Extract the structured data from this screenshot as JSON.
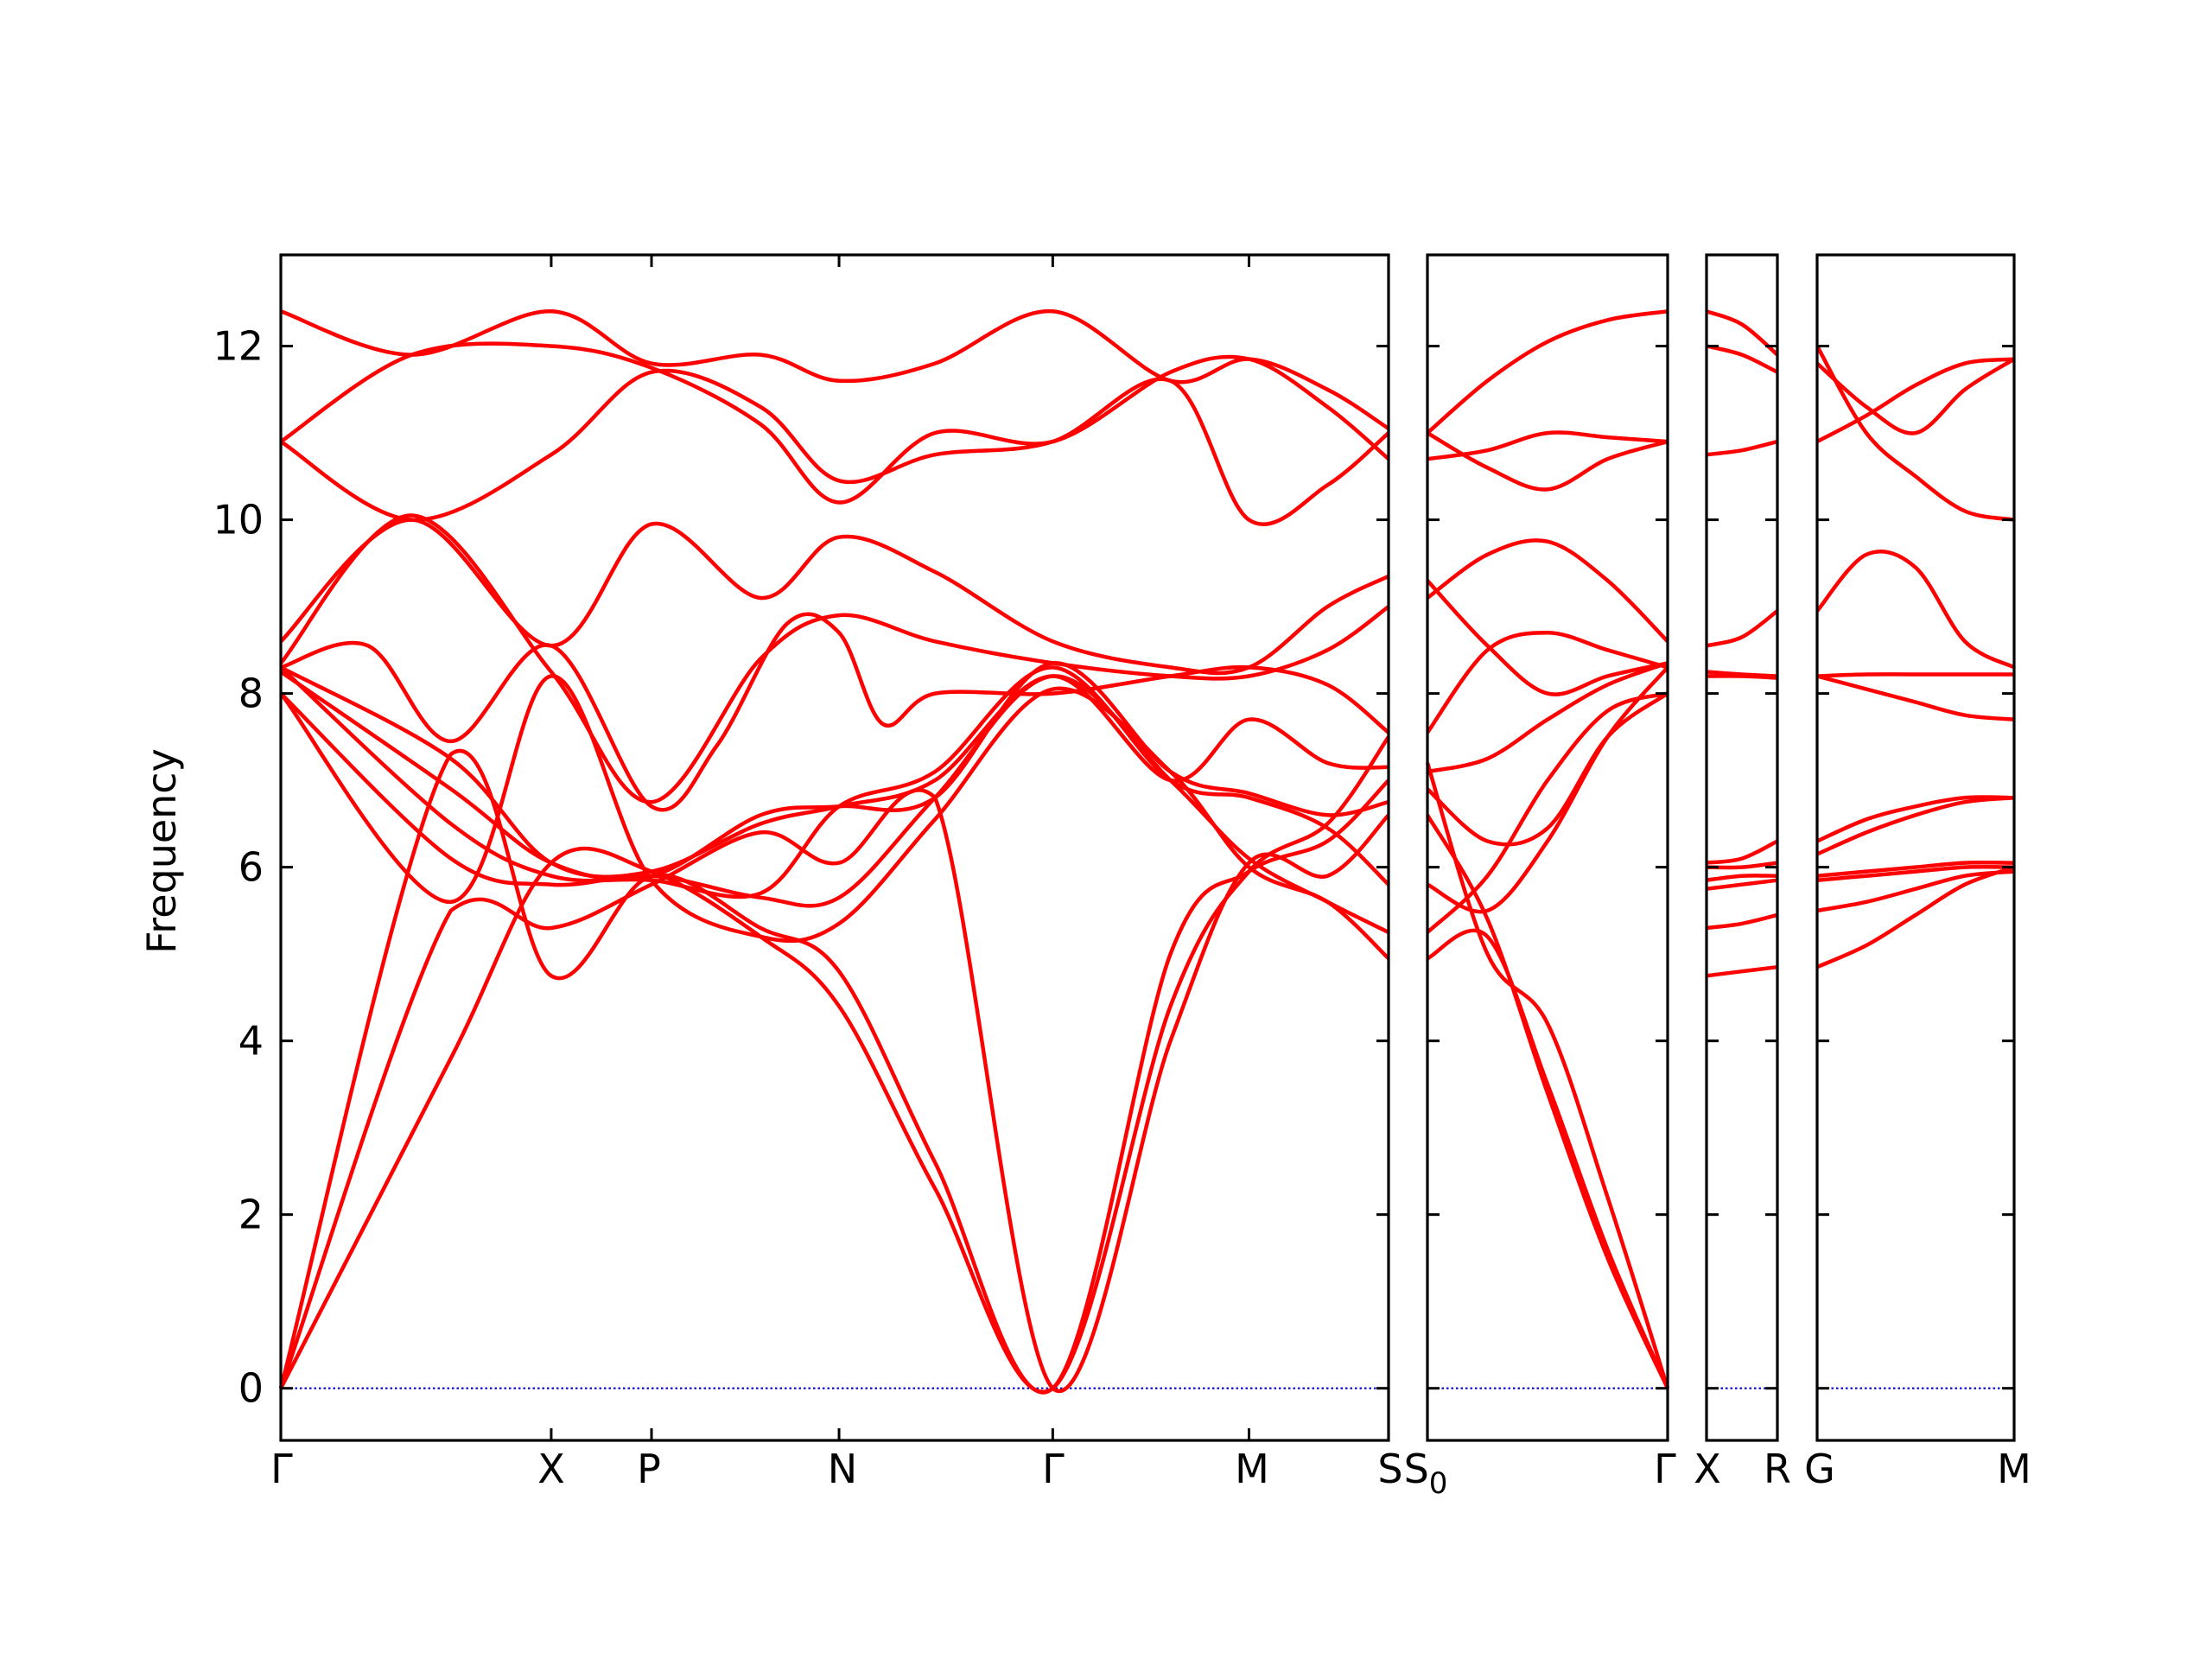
{
  "chart_data": {
    "type": "line",
    "ylabel": "Frequency",
    "ylim": [
      -0.6,
      13.05
    ],
    "y_ticks": [
      0,
      2,
      4,
      6,
      8,
      10,
      12
    ],
    "line_color": "#ff0000",
    "zero_line_color": "#0000cc",
    "x_tick_labels": [
      "Γ",
      "X",
      "P",
      "N",
      "Γ",
      "M",
      "S",
      "S",
      "0",
      "Γ",
      "X",
      "R",
      "G",
      "M"
    ],
    "panels": [
      {
        "x_range": [
          0,
          12.7
        ],
        "path_points": [
          {
            "label": "Γ",
            "x": 0
          },
          {
            "label": "X",
            "x": 3.1
          },
          {
            "label": "P",
            "x": 4.25
          },
          {
            "label": "N",
            "x": 6.4
          },
          {
            "label": "Γ",
            "x": 8.85
          },
          {
            "label": "M",
            "x": 11.1
          },
          {
            "label": "S",
            "x": 12.7
          }
        ],
        "series": [
          {
            "x": [
              0,
              1.5,
              3.1,
              4.25,
              5.5,
              6.4,
              7.5,
              8.85,
              10.2,
              11.1,
              12.0,
              12.7
            ],
            "y": [
              12.4,
              11.9,
              12.4,
              11.8,
              11.9,
              11.6,
              11.8,
              12.4,
              11.6,
              11.85,
              11.5,
              11.05
            ]
          },
          {
            "x": [
              0,
              1.5,
              3.1,
              4.25,
              5.5,
              6.4,
              7.5,
              8.85,
              10.2,
              11.1,
              12.0,
              12.7
            ],
            "y": [
              10.9,
              11.9,
              12.0,
              11.75,
              11.1,
              10.2,
              11.0,
              10.9,
              11.7,
              11.85,
              11.3,
              10.7
            ]
          },
          {
            "x": [
              0,
              1.5,
              3.1,
              4.25,
              5.5,
              6.4,
              7.5,
              8.85,
              10.2,
              11.1,
              12.0,
              12.7
            ],
            "y": [
              10.9,
              10.0,
              10.75,
              11.7,
              11.3,
              10.45,
              10.75,
              10.9,
              11.6,
              10.0,
              10.4,
              11.0
            ]
          },
          {
            "x": [
              0,
              1.5,
              3.1,
              4.25,
              5.5,
              6.4,
              7.5,
              8.85,
              10.2,
              11.1,
              12.0,
              12.7
            ],
            "y": [
              8.6,
              10.0,
              8.55,
              9.95,
              9.1,
              9.8,
              9.4,
              8.6,
              8.3,
              8.3,
              9.0,
              9.35
            ]
          },
          {
            "x": [
              0,
              1.5,
              3.1,
              4.25,
              5.5,
              6.4,
              7.5,
              8.85,
              10.2,
              11.1,
              12.0,
              12.7
            ],
            "y": [
              8.35,
              10.05,
              8.25,
              6.75,
              8.4,
              8.9,
              8.6,
              8.35,
              8.2,
              8.2,
              8.5,
              9.0
            ]
          },
          {
            "x": [
              0,
              1.0,
              1.95,
              3.1,
              4.25,
              5.0,
              5.8,
              6.4,
              6.9,
              7.5,
              8.85,
              10.2,
              11.1,
              12.0,
              12.7
            ],
            "y": [
              8.3,
              8.55,
              7.45,
              8.55,
              6.7,
              7.4,
              8.8,
              8.7,
              7.65,
              8.0,
              8.0,
              8.2,
              8.3,
              8.1,
              7.55
            ]
          },
          {
            "x": [
              0,
              1.95,
              3.1,
              4.25,
              5.5,
              6.4,
              7.5,
              8.85,
              10.2,
              11.1,
              12.0,
              12.7
            ],
            "y": [
              8.3,
              7.25,
              6.05,
              5.95,
              6.5,
              6.7,
              7.0,
              8.2,
              7.0,
              7.7,
              7.2,
              7.15
            ]
          },
          {
            "x": [
              0,
              1.95,
              3.1,
              4.25,
              5.5,
              6.4,
              7.5,
              8.85,
              10.2,
              11.1,
              12.0,
              12.7
            ],
            "y": [
              8.25,
              6.9,
              6.05,
              5.9,
              6.6,
              6.7,
              6.8,
              8.35,
              7.1,
              6.85,
              6.6,
              6.75
            ]
          },
          {
            "x": [
              0,
              1.95,
              3.1,
              4.25,
              5.5,
              6.4,
              7.5,
              8.85,
              10.2,
              11.1,
              12.0,
              12.7
            ],
            "y": [
              8.3,
              6.5,
              5.9,
              5.85,
              5.7,
              6.7,
              7.1,
              8.3,
              7.0,
              6.8,
              6.45,
              5.8
            ]
          },
          {
            "x": [
              0,
              1.95,
              3.1,
              4.25,
              5.5,
              6.4,
              7.5,
              8.85,
              10.2,
              11.1,
              12.0,
              12.7
            ],
            "y": [
              8.0,
              6.1,
              5.8,
              5.9,
              5.65,
              5.65,
              6.8,
              8.2,
              7.0,
              6.1,
              5.6,
              5.25
            ]
          },
          {
            "x": [
              0,
              1.95,
              3.1,
              4.25,
              5.5,
              6.4,
              7.5,
              8.85,
              10.2,
              11.1,
              12.0,
              12.7
            ],
            "y": [
              8.0,
              5.6,
              8.2,
              5.85,
              5.2,
              5.35,
              6.55,
              8.05,
              7.1,
              6.0,
              5.6,
              4.95
            ]
          },
          {
            "x": [
              0,
              1.95,
              3.1,
              4.25,
              5.5,
              6.4,
              7.5,
              8.85,
              10.2,
              11.1,
              12.0,
              12.7
            ],
            "y": [
              0,
              5.5,
              5.3,
              5.8,
              6.4,
              6.05,
              6.8,
              0,
              4.0,
              6.05,
              5.9,
              6.6
            ]
          },
          {
            "x": [
              0,
              1.95,
              3.1,
              4.25,
              5.5,
              6.4,
              7.5,
              8.85,
              10.2,
              11.1,
              12.0,
              12.7
            ],
            "y": [
              0,
              7.3,
              4.75,
              5.9,
              5.3,
              4.8,
              2.6,
              0,
              5.0,
              5.95,
              6.3,
              7.0
            ]
          },
          {
            "x": [
              0,
              1.95,
              3.1,
              4.25,
              5.5,
              6.4,
              7.5,
              8.85,
              10.2,
              11.1,
              12.0,
              12.7
            ],
            "y": [
              0,
              3.8,
              6.05,
              5.95,
              5.2,
              4.4,
              2.3,
              0,
              4.4,
              5.95,
              6.5,
              7.5
            ]
          }
        ]
      },
      {
        "x_range": [
          0,
          1
        ],
        "path_points": [
          {
            "label": "S0",
            "x": 0
          },
          {
            "label": "Γ",
            "x": 1
          }
        ],
        "series": [
          {
            "x": [
              0,
              0.25,
              0.5,
              0.75,
              1
            ],
            "y": [
              11.0,
              11.6,
              12.05,
              12.3,
              12.4
            ]
          },
          {
            "x": [
              0,
              0.25,
              0.5,
              0.75,
              1
            ],
            "y": [
              11.0,
              10.6,
              10.35,
              10.7,
              10.9
            ]
          },
          {
            "x": [
              0,
              0.25,
              0.5,
              0.75,
              1
            ],
            "y": [
              10.7,
              10.8,
              11.0,
              10.95,
              10.9
            ]
          },
          {
            "x": [
              0,
              0.25,
              0.5,
              0.75,
              1
            ],
            "y": [
              9.1,
              9.6,
              9.75,
              9.3,
              8.6
            ]
          },
          {
            "x": [
              0,
              0.25,
              0.5,
              0.75,
              1
            ],
            "y": [
              9.3,
              8.55,
              8.0,
              8.2,
              8.35
            ]
          },
          {
            "x": [
              0,
              0.25,
              0.5,
              0.75,
              1
            ],
            "y": [
              7.55,
              8.5,
              8.7,
              8.5,
              8.3
            ]
          },
          {
            "x": [
              0,
              0.25,
              0.5,
              0.75,
              1
            ],
            "y": [
              7.1,
              7.25,
              7.7,
              8.1,
              8.35
            ]
          },
          {
            "x": [
              0,
              0.25,
              0.5,
              0.75,
              1
            ],
            "y": [
              6.9,
              6.3,
              6.45,
              7.5,
              8.0
            ]
          },
          {
            "x": [
              0,
              0.25,
              0.5,
              0.75,
              1
            ],
            "y": [
              5.8,
              5.5,
              6.3,
              7.5,
              8.3
            ]
          },
          {
            "x": [
              0,
              0.25,
              0.5,
              0.75,
              1
            ],
            "y": [
              5.25,
              5.9,
              7.0,
              7.8,
              8.0
            ]
          },
          {
            "x": [
              0,
              0.25,
              0.5,
              0.75,
              1
            ],
            "y": [
              4.95,
              5.2,
              3.5,
              1.6,
              0
            ]
          },
          {
            "x": [
              0,
              0.25,
              0.5,
              0.75,
              1
            ],
            "y": [
              7.2,
              5.0,
              4.2,
              2.2,
              0
            ]
          },
          {
            "x": [
              0,
              0.25,
              0.5,
              0.75,
              1
            ],
            "y": [
              6.6,
              5.4,
              3.4,
              1.5,
              0
            ]
          }
        ]
      },
      {
        "x_range": [
          0,
          1
        ],
        "path_points": [
          {
            "label": "X",
            "x": 0
          },
          {
            "label": "R",
            "x": 1
          }
        ],
        "series": [
          {
            "x": [
              0,
              0.5,
              1
            ],
            "y": [
              12.4,
              12.25,
              11.9
            ]
          },
          {
            "x": [
              0,
              0.5,
              1
            ],
            "y": [
              12.0,
              11.9,
              11.7
            ]
          },
          {
            "x": [
              0,
              0.5,
              1
            ],
            "y": [
              10.75,
              10.8,
              10.9
            ]
          },
          {
            "x": [
              0,
              0.5,
              1
            ],
            "y": [
              8.55,
              8.65,
              8.95
            ]
          },
          {
            "x": [
              0,
              0.5,
              1
            ],
            "y": [
              8.25,
              8.22,
              8.2
            ]
          },
          {
            "x": [
              0,
              0.5,
              1
            ],
            "y": [
              8.2,
              8.2,
              8.18
            ]
          },
          {
            "x": [
              0,
              0.5,
              1
            ],
            "y": [
              6.05,
              6.1,
              6.3
            ]
          },
          {
            "x": [
              0,
              0.5,
              1
            ],
            "y": [
              6.0,
              6.0,
              6.05
            ]
          },
          {
            "x": [
              0,
              0.5,
              1
            ],
            "y": [
              5.85,
              5.9,
              5.9
            ]
          },
          {
            "x": [
              0,
              0.5,
              1
            ],
            "y": [
              5.75,
              5.8,
              5.85
            ]
          },
          {
            "x": [
              0,
              0.5,
              1
            ],
            "y": [
              5.3,
              5.35,
              5.45
            ]
          },
          {
            "x": [
              0,
              0.5,
              1
            ],
            "y": [
              4.75,
              4.8,
              4.85
            ]
          }
        ]
      },
      {
        "x_range": [
          0,
          1
        ],
        "path_points": [
          {
            "label": "G",
            "x": 0
          },
          {
            "label": "M",
            "x": 1
          }
        ],
        "series": [
          {
            "x": [
              0,
              0.25,
              0.5,
              0.75,
              1
            ],
            "y": [
              12.0,
              11.0,
              10.5,
              10.1,
              10.0
            ]
          },
          {
            "x": [
              0,
              0.25,
              0.5,
              0.75,
              1
            ],
            "y": [
              11.8,
              11.3,
              11.0,
              11.5,
              11.85
            ]
          },
          {
            "x": [
              0,
              0.25,
              0.5,
              0.75,
              1
            ],
            "y": [
              10.9,
              11.2,
              11.55,
              11.8,
              11.85
            ]
          },
          {
            "x": [
              0,
              0.25,
              0.5,
              0.75,
              1
            ],
            "y": [
              8.95,
              9.6,
              9.45,
              8.6,
              8.3
            ]
          },
          {
            "x": [
              0,
              0.25,
              0.5,
              0.75,
              1
            ],
            "y": [
              8.2,
              8.22,
              8.22,
              8.22,
              8.22
            ]
          },
          {
            "x": [
              0,
              0.25,
              0.5,
              0.75,
              1
            ],
            "y": [
              8.2,
              8.05,
              7.9,
              7.75,
              7.7
            ]
          },
          {
            "x": [
              0,
              0.25,
              0.5,
              0.75,
              1
            ],
            "y": [
              6.3,
              6.55,
              6.7,
              6.8,
              6.8
            ]
          },
          {
            "x": [
              0,
              0.25,
              0.5,
              0.75,
              1
            ],
            "y": [
              6.15,
              6.4,
              6.6,
              6.75,
              6.8
            ]
          },
          {
            "x": [
              0,
              0.25,
              0.5,
              0.75,
              1
            ],
            "y": [
              5.9,
              5.95,
              6.0,
              6.05,
              6.05
            ]
          },
          {
            "x": [
              0,
              0.25,
              0.5,
              0.75,
              1
            ],
            "y": [
              5.85,
              5.9,
              5.95,
              6.0,
              6.0
            ]
          },
          {
            "x": [
              0,
              0.25,
              0.5,
              0.75,
              1
            ],
            "y": [
              5.5,
              5.6,
              5.75,
              5.9,
              5.95
            ]
          },
          {
            "x": [
              0,
              0.25,
              0.5,
              0.75,
              1
            ],
            "y": [
              4.85,
              5.1,
              5.45,
              5.8,
              6.0
            ]
          }
        ]
      }
    ]
  }
}
